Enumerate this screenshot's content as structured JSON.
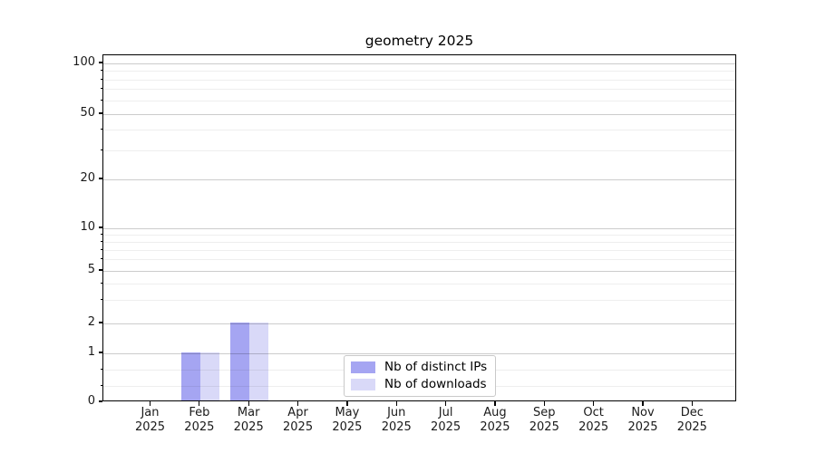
{
  "window": {
    "background": "#ffffff"
  },
  "chart_data": {
    "type": "bar",
    "title": "geometry 2025",
    "categories": [
      {
        "month": "Jan",
        "year": "2025"
      },
      {
        "month": "Feb",
        "year": "2025"
      },
      {
        "month": "Mar",
        "year": "2025"
      },
      {
        "month": "Apr",
        "year": "2025"
      },
      {
        "month": "May",
        "year": "2025"
      },
      {
        "month": "Jun",
        "year": "2025"
      },
      {
        "month": "Jul",
        "year": "2025"
      },
      {
        "month": "Aug",
        "year": "2025"
      },
      {
        "month": "Sep",
        "year": "2025"
      },
      {
        "month": "Oct",
        "year": "2025"
      },
      {
        "month": "Nov",
        "year": "2025"
      },
      {
        "month": "Dec",
        "year": "2025"
      }
    ],
    "series": [
      {
        "name": "Nb of distinct IPs",
        "color": "#a5a5f2",
        "values": [
          0,
          1,
          2,
          0,
          0,
          0,
          0,
          0,
          0,
          0,
          0,
          0
        ]
      },
      {
        "name": "Nb of downloads",
        "color": "#d9d9f8",
        "values": [
          0,
          1,
          2,
          0,
          0,
          0,
          0,
          0,
          0,
          0,
          0,
          0
        ]
      }
    ],
    "y_axis": {
      "scale": "log-like",
      "ticks": [
        0,
        1,
        2,
        5,
        10,
        20,
        50,
        100
      ],
      "minor_ticks": [
        0.33,
        0.66,
        3,
        4,
        6,
        7,
        8,
        9,
        30,
        40,
        60,
        70,
        80,
        90
      ],
      "range": [
        0,
        100
      ]
    },
    "x_axis": {
      "label_lines": 2
    },
    "grid": true,
    "legend": {
      "position": "lower center",
      "border_color": "#c9c9c9"
    }
  }
}
